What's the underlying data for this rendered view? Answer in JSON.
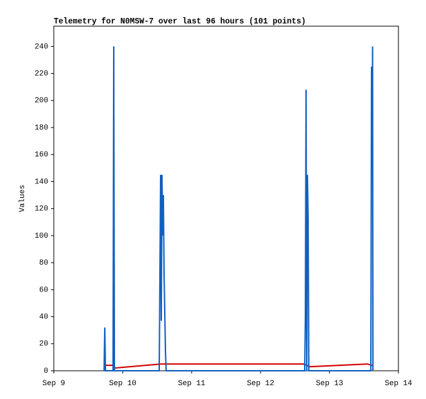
{
  "chart_data": {
    "type": "line",
    "title": "Telemetry for N0MSW-7 over last 96 hours (101 points)",
    "y_label": "Values",
    "xlim": [
      9,
      14
    ],
    "xticks": [
      {
        "value": 9,
        "label": "Sep 9"
      },
      {
        "value": 10,
        "label": "Sep 10"
      },
      {
        "value": 11,
        "label": "Sep 11"
      },
      {
        "value": 12,
        "label": "Sep 12"
      },
      {
        "value": 13,
        "label": "Sep 13"
      },
      {
        "value": 14,
        "label": "Sep 14"
      }
    ],
    "ylim": [
      0,
      255
    ],
    "yticks": [
      0,
      20,
      40,
      60,
      80,
      100,
      120,
      140,
      160,
      180,
      200,
      220,
      240
    ],
    "series": [
      {
        "color": "#d40000",
        "x": [
          9.73,
          9.86,
          9.88,
          10.55,
          12.62,
          12.72,
          13.55,
          13.62
        ],
        "values": [
          4,
          4,
          2,
          5,
          5,
          3,
          5,
          4
        ]
      },
      {
        "color": "#1060c0",
        "x": [
          9.73,
          9.74,
          9.75,
          9.86,
          9.87,
          9.88,
          10.53,
          10.54,
          10.55,
          10.56,
          10.57,
          10.58,
          10.59,
          10.6,
          10.61,
          10.62,
          10.63,
          12.64,
          12.65,
          12.66,
          12.67,
          12.68,
          12.69,
          12.7,
          13.6,
          13.61,
          13.62,
          13.625,
          13.63
        ],
        "values": [
          0,
          32,
          0,
          0,
          240,
          0,
          0,
          72,
          145,
          37,
          145,
          100,
          130,
          72,
          44,
          15,
          0,
          0,
          40,
          208,
          0,
          145,
          112,
          0,
          0,
          225,
          160,
          240,
          0
        ]
      }
    ]
  }
}
